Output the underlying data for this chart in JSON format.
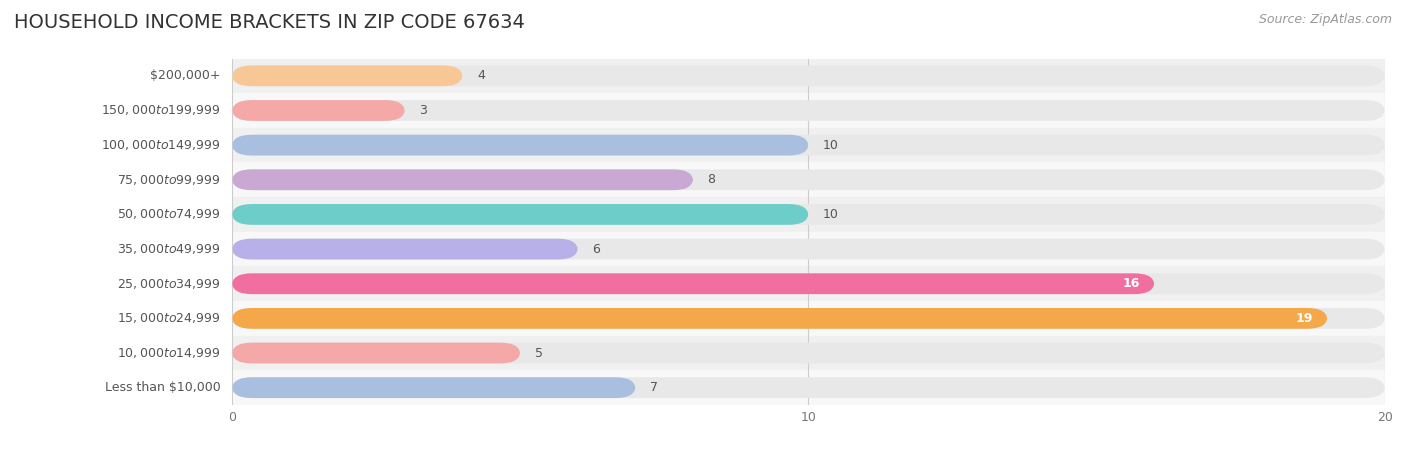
{
  "title": "HOUSEHOLD INCOME BRACKETS IN ZIP CODE 67634",
  "source": "Source: ZipAtlas.com",
  "categories": [
    "Less than $10,000",
    "$10,000 to $14,999",
    "$15,000 to $24,999",
    "$25,000 to $34,999",
    "$35,000 to $49,999",
    "$50,000 to $74,999",
    "$75,000 to $99,999",
    "$100,000 to $149,999",
    "$150,000 to $199,999",
    "$200,000+"
  ],
  "values": [
    4,
    3,
    10,
    8,
    10,
    6,
    16,
    19,
    5,
    7
  ],
  "bar_colors": [
    "#f7c896",
    "#f4a9a8",
    "#a8bfe0",
    "#c9a8d4",
    "#6dcdc8",
    "#b8b0e8",
    "#f06fa0",
    "#f4a84a",
    "#f4a9a8",
    "#a8bfe0"
  ],
  "xlim": [
    0,
    20
  ],
  "xticks": [
    0,
    10,
    20
  ],
  "title_fontsize": 14,
  "label_fontsize": 9,
  "value_fontsize": 9,
  "source_fontsize": 9,
  "bar_height": 0.6,
  "background_color": "#ffffff",
  "row_colors": [
    "#f0f0f0",
    "#f8f8f8"
  ],
  "full_bar_color": "#e8e8e8",
  "grid_color": "#cccccc"
}
